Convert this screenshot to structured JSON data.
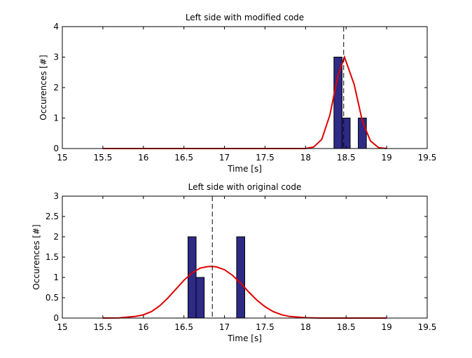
{
  "chart_data": [
    {
      "type": "bar",
      "title": "Left side with modified code",
      "xlabel": "Time [s]",
      "ylabel": "Occurences [#]",
      "xlim": [
        15,
        19.5
      ],
      "ylim": [
        0,
        4
      ],
      "xticks": [
        15,
        15.5,
        16,
        16.5,
        17,
        17.5,
        18,
        18.5,
        19,
        19.5
      ],
      "yticks": [
        0,
        1,
        2,
        3,
        4
      ],
      "bar_width": 0.1,
      "bar_color": "#2e2a86",
      "bars": [
        {
          "x": 18.4,
          "value": 3
        },
        {
          "x": 18.5,
          "value": 1
        },
        {
          "x": 18.7,
          "value": 1
        }
      ],
      "fit_line": {
        "color": "#e00000",
        "points": [
          [
            15.5,
            0
          ],
          [
            16,
            0
          ],
          [
            16.5,
            0
          ],
          [
            17,
            0
          ],
          [
            17.5,
            0
          ],
          [
            18,
            0
          ],
          [
            18.1,
            0.05
          ],
          [
            18.2,
            0.3
          ],
          [
            18.3,
            1.1
          ],
          [
            18.4,
            2.4
          ],
          [
            18.48,
            3.0
          ],
          [
            18.6,
            2.1
          ],
          [
            18.7,
            0.9
          ],
          [
            18.8,
            0.25
          ],
          [
            18.9,
            0.03
          ],
          [
            19,
            0
          ]
        ]
      },
      "mean_line": {
        "x": 18.47,
        "style": "dashed",
        "color": "#000000"
      }
    },
    {
      "type": "bar",
      "title": "Left side with original code",
      "xlabel": "Time [s]",
      "ylabel": "Occurences [#]",
      "xlim": [
        15,
        19.5
      ],
      "ylim": [
        0,
        3
      ],
      "xticks": [
        15,
        15.5,
        16,
        16.5,
        17,
        17.5,
        18,
        18.5,
        19,
        19.5
      ],
      "yticks": [
        0,
        0.5,
        1,
        1.5,
        2,
        2.5,
        3
      ],
      "bar_width": 0.1,
      "bar_color": "#2e2a86",
      "bars": [
        {
          "x": 16.6,
          "value": 2
        },
        {
          "x": 16.7,
          "value": 1
        },
        {
          "x": 17.2,
          "value": 2
        }
      ],
      "fit_line": {
        "color": "#e00000",
        "points": [
          [
            15.5,
            0
          ],
          [
            15.7,
            0.005
          ],
          [
            15.9,
            0.04
          ],
          [
            16.0,
            0.08
          ],
          [
            16.1,
            0.16
          ],
          [
            16.2,
            0.3
          ],
          [
            16.3,
            0.49
          ],
          [
            16.4,
            0.71
          ],
          [
            16.5,
            0.93
          ],
          [
            16.6,
            1.11
          ],
          [
            16.7,
            1.23
          ],
          [
            16.8,
            1.27
          ],
          [
            16.85,
            1.27
          ],
          [
            16.9,
            1.26
          ],
          [
            17.0,
            1.19
          ],
          [
            17.1,
            1.05
          ],
          [
            17.2,
            0.86
          ],
          [
            17.3,
            0.64
          ],
          [
            17.4,
            0.44
          ],
          [
            17.5,
            0.28
          ],
          [
            17.6,
            0.16
          ],
          [
            17.7,
            0.085
          ],
          [
            17.8,
            0.04
          ],
          [
            18.0,
            0.008
          ],
          [
            18.2,
            0.001
          ],
          [
            18.5,
            0
          ],
          [
            19,
            0
          ]
        ]
      },
      "mean_line": {
        "x": 16.85,
        "style": "dashed",
        "color": "#000000"
      }
    }
  ]
}
